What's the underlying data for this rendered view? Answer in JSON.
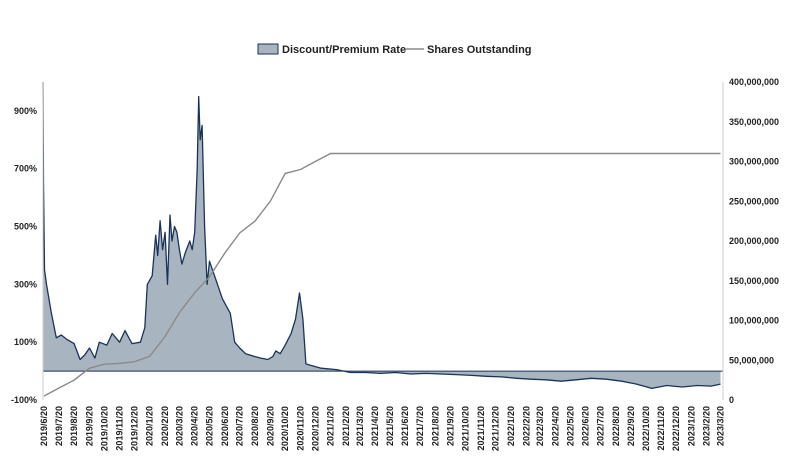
{
  "chart_data": {
    "type": "area",
    "legend": {
      "position": "top-center"
    },
    "series": [
      {
        "name": "Discount/Premium Rate",
        "kind": "area",
        "axis": "left",
        "unit": "%",
        "fill": "#a9b4c1",
        "stroke": "#1a3358",
        "points": [
          [
            "2019/6/18",
            1000
          ],
          [
            "2019/6/19",
            650
          ],
          [
            "2019/6/21",
            350
          ],
          [
            "2019/6/25",
            300
          ],
          [
            "2019/7/5",
            200
          ],
          [
            "2019/7/15",
            115
          ],
          [
            "2019/7/25",
            125
          ],
          [
            "2019/8/5",
            110
          ],
          [
            "2019/8/20",
            95
          ],
          [
            "2019/9/1",
            40
          ],
          [
            "2019/9/10",
            55
          ],
          [
            "2019/9/20",
            80
          ],
          [
            "2019/10/1",
            45
          ],
          [
            "2019/10/10",
            100
          ],
          [
            "2019/10/25",
            90
          ],
          [
            "2019/11/5",
            130
          ],
          [
            "2019/11/20",
            100
          ],
          [
            "2019/12/1",
            140
          ],
          [
            "2019/12/15",
            95
          ],
          [
            "2020/1/1",
            100
          ],
          [
            "2020/1/10",
            150
          ],
          [
            "2020/1/15",
            300
          ],
          [
            "2020/1/25",
            330
          ],
          [
            "2020/2/1",
            470
          ],
          [
            "2020/2/5",
            400
          ],
          [
            "2020/2/10",
            520
          ],
          [
            "2020/2/15",
            420
          ],
          [
            "2020/2/20",
            480
          ],
          [
            "2020/2/25",
            300
          ],
          [
            "2020/3/1",
            540
          ],
          [
            "2020/3/5",
            450
          ],
          [
            "2020/3/10",
            500
          ],
          [
            "2020/3/15",
            480
          ],
          [
            "2020/3/20",
            420
          ],
          [
            "2020/3/25",
            370
          ],
          [
            "2020/4/1",
            410
          ],
          [
            "2020/4/10",
            450
          ],
          [
            "2020/4/15",
            420
          ],
          [
            "2020/4/20",
            480
          ],
          [
            "2020/4/25",
            700
          ],
          [
            "2020/4/28",
            950
          ],
          [
            "2020/5/1",
            800
          ],
          [
            "2020/5/5",
            850
          ],
          [
            "2020/5/10",
            500
          ],
          [
            "2020/5/15",
            300
          ],
          [
            "2020/5/20",
            380
          ],
          [
            "2020/6/1",
            320
          ],
          [
            "2020/6/15",
            250
          ],
          [
            "2020/7/1",
            200
          ],
          [
            "2020/7/10",
            100
          ],
          [
            "2020/7/20",
            80
          ],
          [
            "2020/8/1",
            60
          ],
          [
            "2020/8/20",
            50
          ],
          [
            "2020/9/1",
            45
          ],
          [
            "2020/9/15",
            40
          ],
          [
            "2020/9/25",
            50
          ],
          [
            "2020/10/1",
            70
          ],
          [
            "2020/10/10",
            60
          ],
          [
            "2020/10/20",
            90
          ],
          [
            "2020/11/1",
            130
          ],
          [
            "2020/11/10",
            180
          ],
          [
            "2020/11/18",
            270
          ],
          [
            "2020/11/25",
            180
          ],
          [
            "2020/12/1",
            25
          ],
          [
            "2020/12/10",
            20
          ],
          [
            "2021/1/1",
            10
          ],
          [
            "2021/2/1",
            5
          ],
          [
            "2021/3/1",
            -5
          ],
          [
            "2021/4/1",
            -5
          ],
          [
            "2021/5/1",
            -8
          ],
          [
            "2021/6/1",
            -5
          ],
          [
            "2021/7/1",
            -10
          ],
          [
            "2021/8/1",
            -8
          ],
          [
            "2021/9/1",
            -10
          ],
          [
            "2021/10/1",
            -12
          ],
          [
            "2021/11/1",
            -15
          ],
          [
            "2021/12/1",
            -18
          ],
          [
            "2022/1/1",
            -20
          ],
          [
            "2022/2/1",
            -25
          ],
          [
            "2022/3/1",
            -28
          ],
          [
            "2022/4/1",
            -30
          ],
          [
            "2022/5/1",
            -35
          ],
          [
            "2022/6/1",
            -30
          ],
          [
            "2022/7/1",
            -25
          ],
          [
            "2022/8/1",
            -28
          ],
          [
            "2022/9/1",
            -35
          ],
          [
            "2022/10/1",
            -45
          ],
          [
            "2022/11/1",
            -60
          ],
          [
            "2022/12/1",
            -50
          ],
          [
            "2023/1/1",
            -55
          ],
          [
            "2023/2/1",
            -50
          ],
          [
            "2023/3/1",
            -52
          ],
          [
            "2023/3/20",
            -45
          ]
        ]
      },
      {
        "name": "Shares Outstanding",
        "kind": "line",
        "axis": "right",
        "stroke": "#8a8a8a",
        "points": [
          [
            "2019/6/20",
            5000000
          ],
          [
            "2019/7/20",
            15000000
          ],
          [
            "2019/8/20",
            25000000
          ],
          [
            "2019/9/20",
            40000000
          ],
          [
            "2019/10/20",
            45000000
          ],
          [
            "2019/11/20",
            46000000
          ],
          [
            "2019/12/20",
            48000000
          ],
          [
            "2020/1/20",
            55000000
          ],
          [
            "2020/2/20",
            80000000
          ],
          [
            "2020/3/20",
            110000000
          ],
          [
            "2020/4/20",
            135000000
          ],
          [
            "2020/5/20",
            155000000
          ],
          [
            "2020/6/20",
            185000000
          ],
          [
            "2020/7/20",
            210000000
          ],
          [
            "2020/8/20",
            225000000
          ],
          [
            "2020/9/20",
            250000000
          ],
          [
            "2020/10/20",
            285000000
          ],
          [
            "2020/11/20",
            290000000
          ],
          [
            "2020/12/20",
            300000000
          ],
          [
            "2021/1/20",
            310000000
          ],
          [
            "2021/3/20",
            310000000
          ],
          [
            "2022/1/20",
            310000000
          ],
          [
            "2023/3/20",
            310000000
          ]
        ]
      }
    ],
    "x_ticks": [
      "2019/6/20",
      "2019/7/20",
      "2019/8/20",
      "2019/9/20",
      "2019/10/20",
      "2019/11/20",
      "2019/12/20",
      "2020/1/20",
      "2020/2/20",
      "2020/3/20",
      "2020/4/20",
      "2020/5/20",
      "2020/6/20",
      "2020/7/20",
      "2020/8/20",
      "2020/9/20",
      "2020/10/20",
      "2020/11/20",
      "2020/12/20",
      "2021/1/20",
      "2021/2/20",
      "2021/3/20",
      "2021/4/20",
      "2021/5/20",
      "2021/6/20",
      "2021/7/20",
      "2021/8/20",
      "2021/9/20",
      "2021/10/20",
      "2021/11/20",
      "2021/12/20",
      "2022/1/20",
      "2022/2/20",
      "2022/3/20",
      "2022/4/20",
      "2022/5/20",
      "2022/6/20",
      "2022/7/20",
      "2022/8/20",
      "2022/9/20",
      "2022/10/20",
      "2022/11/20",
      "2022/12/20",
      "2023/1/20",
      "2023/2/20",
      "2023/3/20"
    ],
    "xlim": [
      "2019/6/18",
      "2023/3/25"
    ],
    "y_left": {
      "ylim": [
        -100,
        1000
      ],
      "ticks": [
        -100,
        100,
        300,
        500,
        700,
        900
      ],
      "tick_labels": [
        "-100%",
        "100%",
        "300%",
        "500%",
        "700%",
        "900%"
      ]
    },
    "y_right": {
      "ylim": [
        0,
        400000000
      ],
      "ticks": [
        0,
        50000000,
        100000000,
        150000000,
        200000000,
        250000000,
        300000000,
        350000000,
        400000000
      ],
      "tick_labels": [
        "0",
        "50,000,000",
        "100,000,000",
        "150,000,000",
        "200,000,000",
        "250,000,000",
        "300,000,000",
        "350,000,000",
        "400,000,000"
      ]
    },
    "grid": false
  }
}
